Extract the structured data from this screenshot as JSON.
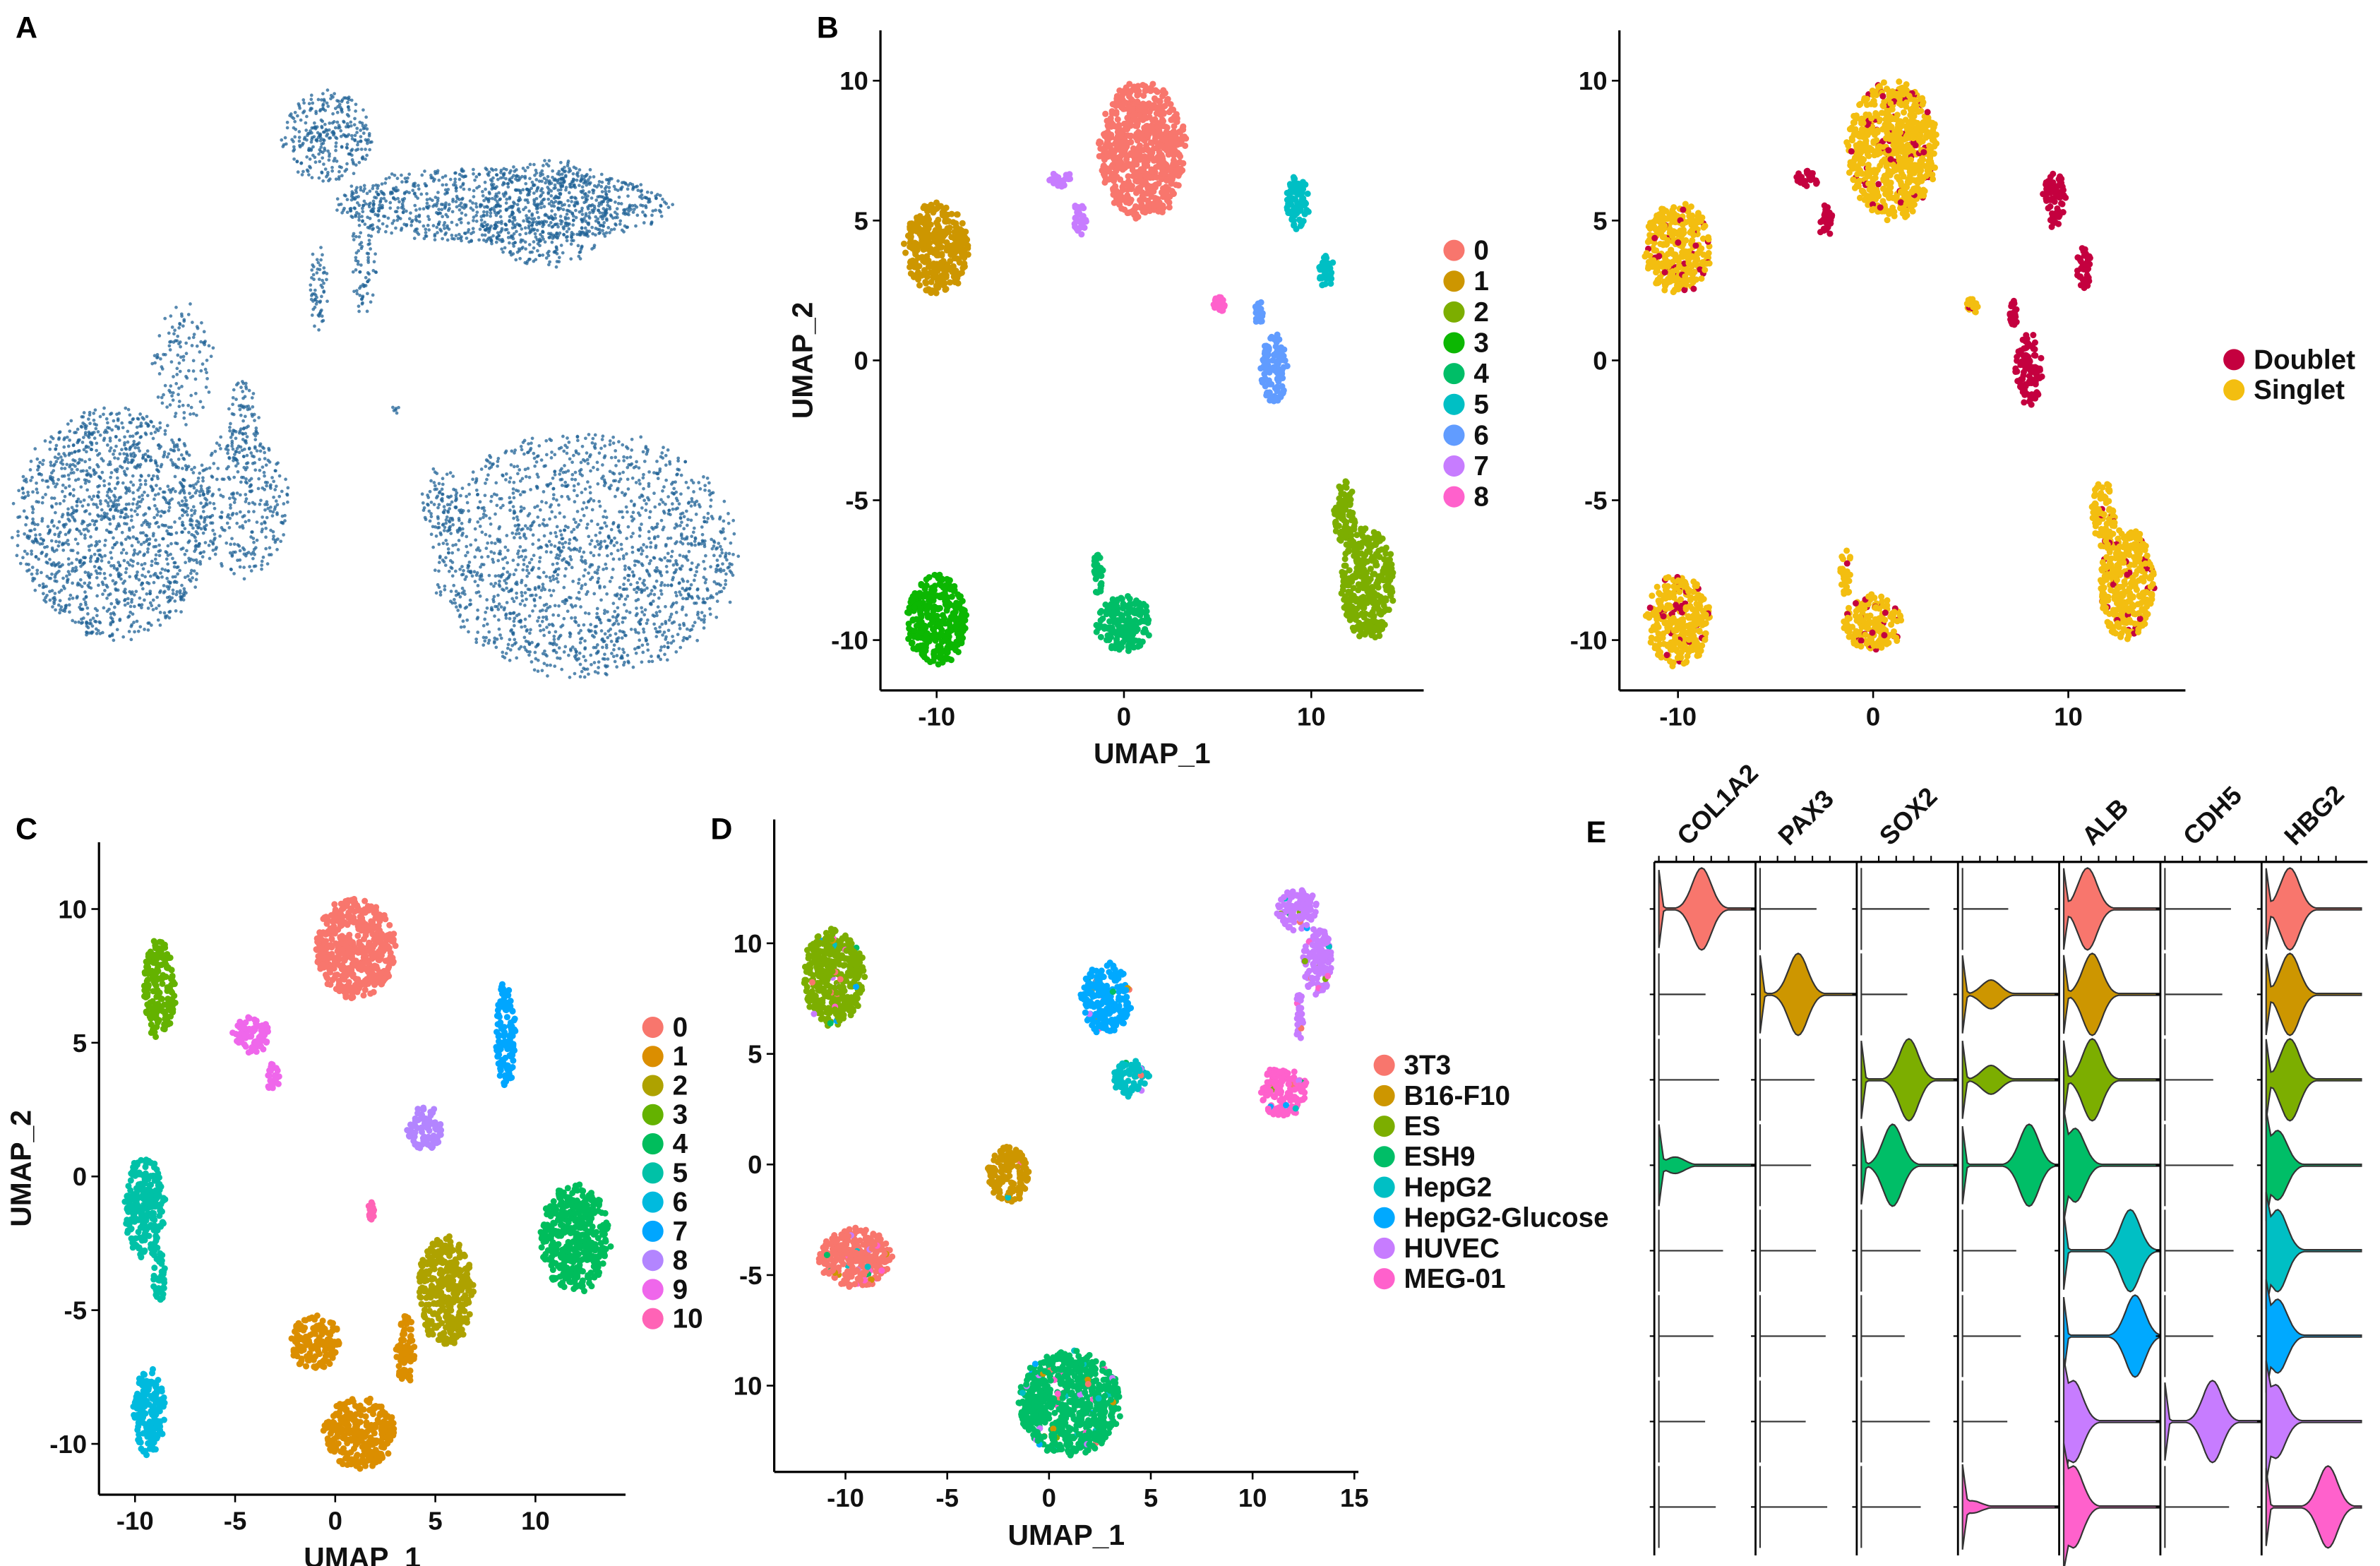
{
  "panel_labels": {
    "a": "A",
    "b": "B",
    "c": "C",
    "d": "D",
    "e": "E"
  },
  "chart_data": [
    {
      "id": "A",
      "type": "scatter",
      "title": "",
      "xlabel": "",
      "ylabel": "",
      "point_color": "#1F6295",
      "axes": "none"
    },
    {
      "id": "B_clusters",
      "type": "scatter",
      "xlabel": "UMAP_1",
      "ylabel": "UMAP_2",
      "xlim": [
        -13,
        16
      ],
      "ylim": [
        -11.8,
        11.8
      ],
      "xticks": [
        "-10",
        "0",
        "10"
      ],
      "xtick_values": [
        -10,
        0,
        10
      ],
      "yticks": [
        "-10",
        "-5",
        "0",
        "5",
        "10"
      ],
      "ytick_values": [
        -10,
        -5,
        0,
        5,
        10
      ],
      "legend_position": "right",
      "legend": [
        "0",
        "1",
        "2",
        "3",
        "4",
        "5",
        "6",
        "7",
        "8"
      ],
      "colors": [
        "#F8766D",
        "#CD9600",
        "#7CAE00",
        "#0CB702",
        "#00BE67",
        "#00BFC4",
        "#619CFF",
        "#C77CFF",
        "#FF61CC"
      ],
      "clusters": [
        {
          "label": "0",
          "cx": 1,
          "cy": 7.5,
          "sx": 2.3,
          "sy": 2.4
        },
        {
          "label": "1",
          "cx": -10,
          "cy": 4,
          "sx": 1.7,
          "sy": 1.6
        },
        {
          "label": "2",
          "cx": 13,
          "cy": -8,
          "sx": 1.4,
          "sy": 2.0
        },
        {
          "label": "2",
          "cx": 11.8,
          "cy": -5.5,
          "sx": 0.6,
          "sy": 1.2
        },
        {
          "label": "3",
          "cx": -10,
          "cy": -9.3,
          "sx": 1.6,
          "sy": 1.6
        },
        {
          "label": "4",
          "cx": 0,
          "cy": -9.4,
          "sx": 1.5,
          "sy": 1.0
        },
        {
          "label": "4",
          "cx": -1.4,
          "cy": -7.6,
          "sx": 0.3,
          "sy": 0.8
        },
        {
          "label": "5",
          "cx": 9.3,
          "cy": 5.7,
          "sx": 0.6,
          "sy": 1.0
        },
        {
          "label": "5",
          "cx": 10.8,
          "cy": 3.3,
          "sx": 0.4,
          "sy": 0.8
        },
        {
          "label": "6",
          "cx": 8,
          "cy": -0.3,
          "sx": 0.7,
          "sy": 1.3
        },
        {
          "label": "6",
          "cx": 7.2,
          "cy": 1.7,
          "sx": 0.2,
          "sy": 0.5
        },
        {
          "label": "7",
          "cx": -3.4,
          "cy": 6.5,
          "sx": 0.6,
          "sy": 0.3
        },
        {
          "label": "7",
          "cx": -2.4,
          "cy": 5.0,
          "sx": 0.4,
          "sy": 0.6
        },
        {
          "label": "8",
          "cx": 5.1,
          "cy": 2.0,
          "sx": 0.3,
          "sy": 0.3
        }
      ]
    },
    {
      "id": "B_doublets",
      "type": "scatter",
      "xlabel": "",
      "ylabel": "",
      "xlim": [
        -13,
        16
      ],
      "ylim": [
        -11.8,
        11.8
      ],
      "xticks": [
        "-10",
        "0",
        "10"
      ],
      "xtick_values": [
        -10,
        0,
        10
      ],
      "yticks": [
        "-10",
        "-5",
        "0",
        "5",
        "10"
      ],
      "ytick_values": [
        -10,
        -5,
        0,
        5,
        10
      ],
      "legend_position": "right",
      "legend": [
        "Doublet",
        "Singlet"
      ],
      "colors": [
        "#C4003F",
        "#F3BE10"
      ],
      "doublet_clusters": [
        "5",
        "6",
        "7"
      ]
    },
    {
      "id": "C",
      "type": "scatter",
      "xlabel": "UMAP_1",
      "ylabel": "UMAP_2",
      "xlim": [
        -11.8,
        14.5
      ],
      "ylim": [
        -11.9,
        12.5
      ],
      "xticks": [
        "-10",
        "-5",
        "0",
        "5",
        "10"
      ],
      "xtick_values": [
        -10,
        -5,
        0,
        5,
        10
      ],
      "yticks": [
        "-10",
        "-5",
        "0",
        "5",
        "10"
      ],
      "ytick_values": [
        -10,
        -5,
        0,
        5,
        10
      ],
      "legend_position": "right",
      "legend": [
        "0",
        "1",
        "2",
        "3",
        "4",
        "5",
        "6",
        "7",
        "8",
        "9",
        "10"
      ],
      "colors": [
        "#F8766D",
        "#DB8E00",
        "#AEA200",
        "#64B200",
        "#00BD5C",
        "#00C1A7",
        "#00BADE",
        "#00A6FF",
        "#B385FF",
        "#EF67EB",
        "#FF63B6"
      ],
      "clusters": [
        {
          "label": "0",
          "cx": 1,
          "cy": 8.5,
          "sx": 2.0,
          "sy": 1.9
        },
        {
          "label": "1",
          "cx": -1,
          "cy": -6.2,
          "sx": 1.2,
          "sy": 1.0
        },
        {
          "label": "1",
          "cx": 1.2,
          "cy": -9.6,
          "sx": 1.8,
          "sy": 1.3
        },
        {
          "label": "1",
          "cx": 3.5,
          "cy": -6.5,
          "sx": 0.5,
          "sy": 1.3
        },
        {
          "label": "2",
          "cx": 5.5,
          "cy": -4.3,
          "sx": 1.4,
          "sy": 2.0
        },
        {
          "label": "3",
          "cx": -8.8,
          "cy": 7,
          "sx": 0.8,
          "sy": 1.9
        },
        {
          "label": "4",
          "cx": 12,
          "cy": -2.3,
          "sx": 1.7,
          "sy": 2.0
        },
        {
          "label": "5",
          "cx": -9.5,
          "cy": -1.2,
          "sx": 1.0,
          "sy": 1.9
        },
        {
          "label": "5",
          "cx": -8.8,
          "cy": -3.8,
          "sx": 0.3,
          "sy": 1.0
        },
        {
          "label": "6",
          "cx": -9.3,
          "cy": -8.8,
          "sx": 0.8,
          "sy": 1.6
        },
        {
          "label": "7",
          "cx": 8.5,
          "cy": 5.3,
          "sx": 0.5,
          "sy": 1.9
        },
        {
          "label": "8",
          "cx": 4.5,
          "cy": 1.8,
          "sx": 0.9,
          "sy": 0.8
        },
        {
          "label": "9",
          "cx": -4.2,
          "cy": 5.3,
          "sx": 0.9,
          "sy": 0.7
        },
        {
          "label": "9",
          "cx": -3.1,
          "cy": 3.7,
          "sx": 0.3,
          "sy": 0.6
        },
        {
          "label": "10",
          "cx": 1.8,
          "cy": -1.3,
          "sx": 0.15,
          "sy": 0.35
        }
      ]
    },
    {
      "id": "D",
      "type": "scatter",
      "xlabel": "UMAP_1",
      "ylabel": "",
      "xlim": [
        -13.5,
        15.2
      ],
      "ylim": [
        -13.9,
        15.6
      ],
      "xticks": [
        "-10",
        "-5",
        "0",
        "5",
        "10",
        "15"
      ],
      "xtick_values": [
        -10,
        -5,
        0,
        5,
        10,
        15
      ],
      "yticks": [
        "10",
        "5",
        "0",
        "-5",
        "10"
      ],
      "ytick_values": [
        10,
        5,
        0,
        -5,
        -10
      ],
      "legend_position": "right",
      "legend": [
        "3T3",
        "B16-F10",
        "ES",
        "ESH9",
        "HepG2",
        "HepG2-Glucose",
        "HUVEC",
        "MEG-01"
      ],
      "colors": [
        "#F8766D",
        "#CD9600",
        "#7CAE00",
        "#00BE67",
        "#00BFC4",
        "#00A9FF",
        "#C77CFF",
        "#FF61CC"
      ],
      "clusters": [
        {
          "label": "3T3",
          "cx": -9.5,
          "cy": -4.2,
          "sx": 1.8,
          "sy": 1.3
        },
        {
          "label": "B16-F10",
          "cx": -2,
          "cy": -0.5,
          "sx": 1.0,
          "sy": 1.3
        },
        {
          "label": "ES",
          "cx": -10.6,
          "cy": 8.5,
          "sx": 1.5,
          "sy": 2.2
        },
        {
          "label": "ESH9",
          "cx": 1,
          "cy": -10.8,
          "sx": 2.5,
          "sy": 2.3
        },
        {
          "label": "HepG2",
          "cx": 4.0,
          "cy": 3.9,
          "sx": 0.9,
          "sy": 0.8
        },
        {
          "label": "HepG2-Glucose",
          "cx": 2.8,
          "cy": 7.5,
          "sx": 1.2,
          "sy": 1.6
        },
        {
          "label": "HUVEC",
          "cx": 12.2,
          "cy": 11.5,
          "sx": 1.0,
          "sy": 0.9
        },
        {
          "label": "HUVEC",
          "cx": 13.2,
          "cy": 9.2,
          "sx": 0.7,
          "sy": 1.5
        },
        {
          "label": "HUVEC",
          "cx": 12.3,
          "cy": 6.6,
          "sx": 0.2,
          "sy": 1.2
        },
        {
          "label": "MEG-01",
          "cx": 11.5,
          "cy": 3.3,
          "sx": 1.2,
          "sy": 1.1
        }
      ],
      "mixing": 0.06
    },
    {
      "id": "E",
      "type": "violin",
      "xlabel": "",
      "ylabel": "",
      "genes": [
        "COL1A2",
        "PAX3",
        "SOX2",
        "",
        "ALB",
        "CDH5",
        "HBG2"
      ],
      "rows": [
        "3T3",
        "B16-F10",
        "ES",
        "ESH9",
        "HepG2",
        "HepG2-Glucose",
        "HUVEC",
        "MEG-01"
      ],
      "row_colors": [
        "#F8766D",
        "#CD9600",
        "#7CAE00",
        "#00BE67",
        "#00BFC4",
        "#00A9FF",
        "#C77CFF",
        "#FF61CC"
      ],
      "expression_peak": [
        [
          0.45,
          0,
          0,
          0,
          0.25,
          0,
          0.25
        ],
        [
          0,
          0.4,
          0,
          0.3,
          0.3,
          0,
          0.25
        ],
        [
          0,
          0,
          0.5,
          0.3,
          0.3,
          0,
          0.25
        ],
        [
          0.17,
          0,
          0.33,
          0.7,
          0.12,
          0,
          0.12
        ],
        [
          0,
          0,
          0,
          0,
          0.7,
          0,
          0.12
        ],
        [
          0,
          0,
          0,
          0,
          0.75,
          0,
          0.12
        ],
        [
          0,
          0,
          0,
          0,
          0.1,
          0.5,
          0.1
        ],
        [
          0,
          0,
          0,
          0.1,
          0.1,
          0,
          0.65
        ]
      ],
      "expression_density": [
        [
          1,
          0,
          0,
          0,
          1,
          0,
          1
        ],
        [
          0,
          1,
          0,
          0.35,
          1,
          0,
          1
        ],
        [
          0,
          0,
          1,
          0.35,
          1,
          0,
          1
        ],
        [
          0.2,
          0,
          1,
          1,
          0.9,
          0,
          0.85
        ],
        [
          0,
          0,
          0,
          0,
          1,
          0,
          1
        ],
        [
          0,
          0,
          0,
          0,
          1,
          0,
          0.9
        ],
        [
          0,
          0,
          0,
          0,
          1,
          1,
          0.9
        ],
        [
          0,
          0,
          0,
          0.15,
          1,
          0,
          1
        ]
      ]
    }
  ]
}
